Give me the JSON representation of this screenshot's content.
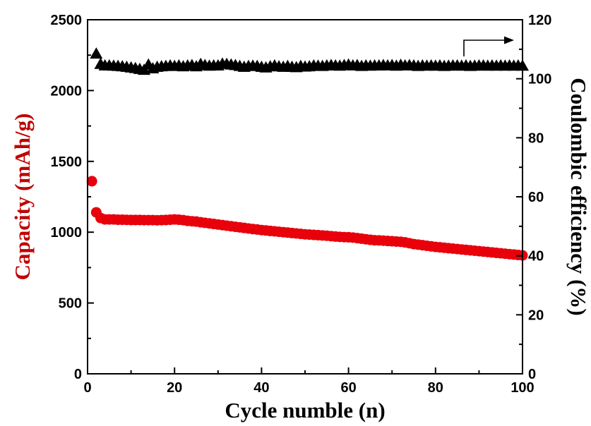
{
  "chart_data": {
    "type": "scatter",
    "xlabel": "Cycle numble (n)",
    "ylabel": "Capacity (mAh/g)",
    "ylabel_right": "Coulombic efficiency (%)",
    "xlim": [
      0,
      100
    ],
    "ylim": [
      0,
      2500
    ],
    "ylim_right": [
      0,
      120
    ],
    "xticks": [
      0,
      20,
      40,
      60,
      80,
      100
    ],
    "yticks": [
      0,
      500,
      1000,
      1500,
      2000,
      2500
    ],
    "yticks_right": [
      0,
      20,
      40,
      60,
      80,
      100,
      120
    ],
    "grid": false,
    "legend": "none",
    "colors": {
      "capacity": "#e8000b",
      "efficiency": "#000000",
      "ylabel": "#c00000",
      "axis": "#000000"
    },
    "series": [
      {
        "axis": "left",
        "marker": "circle",
        "x": [
          1,
          2,
          3,
          4,
          5,
          6,
          7,
          8,
          9,
          10,
          11,
          12,
          13,
          14,
          15,
          16,
          17,
          18,
          19,
          20,
          21,
          22,
          23,
          24,
          25,
          26,
          27,
          28,
          29,
          30,
          31,
          32,
          33,
          34,
          35,
          36,
          37,
          38,
          39,
          40,
          41,
          42,
          43,
          44,
          45,
          46,
          47,
          48,
          49,
          50,
          51,
          52,
          53,
          54,
          55,
          56,
          57,
          58,
          59,
          60,
          61,
          62,
          63,
          64,
          65,
          66,
          67,
          68,
          69,
          70,
          71,
          72,
          73,
          74,
          75,
          76,
          77,
          78,
          79,
          80,
          81,
          82,
          83,
          84,
          85,
          86,
          87,
          88,
          89,
          90,
          91,
          92,
          93,
          94,
          95,
          96,
          97,
          98,
          99,
          100
        ],
        "values": [
          1360,
          1140,
          1100,
          1090,
          1090,
          1090,
          1088,
          1088,
          1087,
          1086,
          1086,
          1086,
          1085,
          1085,
          1085,
          1084,
          1085,
          1086,
          1088,
          1090,
          1088,
          1085,
          1080,
          1077,
          1075,
          1070,
          1066,
          1062,
          1058,
          1054,
          1050,
          1046,
          1042,
          1038,
          1034,
          1030,
          1026,
          1022,
          1019,
          1015,
          1012,
          1009,
          1006,
          1003,
          1000,
          997,
          994,
          991,
          988,
          985,
          983,
          981,
          979,
          977,
          975,
          972,
          969,
          967,
          965,
          964,
          962,
          958,
          954,
          950,
          946,
          943,
          942,
          940,
          938,
          936,
          934,
          932,
          928,
          922,
          916,
          912,
          908,
          904,
          900,
          896,
          893,
          890,
          887,
          884,
          881,
          878,
          875,
          872,
          869,
          866,
          863,
          860,
          857,
          854,
          851,
          848,
          845,
          842,
          839,
          836
        ]
      },
      {
        "axis": "right",
        "marker": "triangle",
        "x": [
          2,
          3,
          4,
          5,
          6,
          7,
          8,
          9,
          10,
          11,
          12,
          13,
          14,
          15,
          16,
          17,
          18,
          19,
          20,
          21,
          22,
          23,
          24,
          25,
          26,
          27,
          28,
          29,
          30,
          31,
          32,
          33,
          34,
          35,
          36,
          37,
          38,
          39,
          40,
          41,
          42,
          43,
          44,
          45,
          46,
          47,
          48,
          49,
          50,
          51,
          52,
          53,
          54,
          55,
          56,
          57,
          58,
          59,
          60,
          61,
          62,
          63,
          64,
          65,
          66,
          67,
          68,
          69,
          70,
          71,
          72,
          73,
          74,
          75,
          76,
          77,
          78,
          79,
          80,
          81,
          82,
          83,
          84,
          85,
          86,
          87,
          88,
          89,
          90,
          91,
          92,
          93,
          94,
          95,
          96,
          97,
          98,
          99,
          100
        ],
        "values": [
          108.5,
          105.0,
          104.5,
          104.5,
          104.4,
          104.3,
          104.2,
          104.0,
          103.8,
          103.6,
          103.3,
          103.0,
          104.8,
          103.5,
          104.0,
          104.2,
          104.3,
          104.5,
          104.3,
          104.5,
          104.2,
          104.5,
          104.6,
          104.2,
          105.0,
          104.6,
          104.4,
          104.5,
          104.5,
          105.1,
          105.0,
          104.8,
          104.6,
          104.3,
          104.0,
          104.3,
          104.4,
          104.3,
          104.0,
          103.8,
          104.2,
          104.5,
          104.2,
          104.0,
          104.3,
          104.0,
          103.9,
          104.3,
          104.1,
          104.2,
          104.5,
          104.4,
          104.3,
          104.5,
          104.6,
          104.5,
          104.4,
          104.6,
          104.8,
          104.5,
          104.6,
          104.3,
          104.5,
          104.4,
          104.5,
          104.5,
          104.6,
          104.5,
          104.6,
          104.4,
          104.7,
          104.5,
          104.6,
          104.5,
          104.3,
          104.5,
          104.4,
          104.5,
          104.4,
          104.5,
          104.3,
          104.4,
          104.5,
          104.5,
          104.4,
          104.5,
          104.3,
          104.4,
          104.5,
          104.5,
          104.4,
          104.5,
          104.4,
          104.5,
          104.4,
          104.5,
          104.4,
          104.5,
          104.4
        ]
      }
    ]
  }
}
